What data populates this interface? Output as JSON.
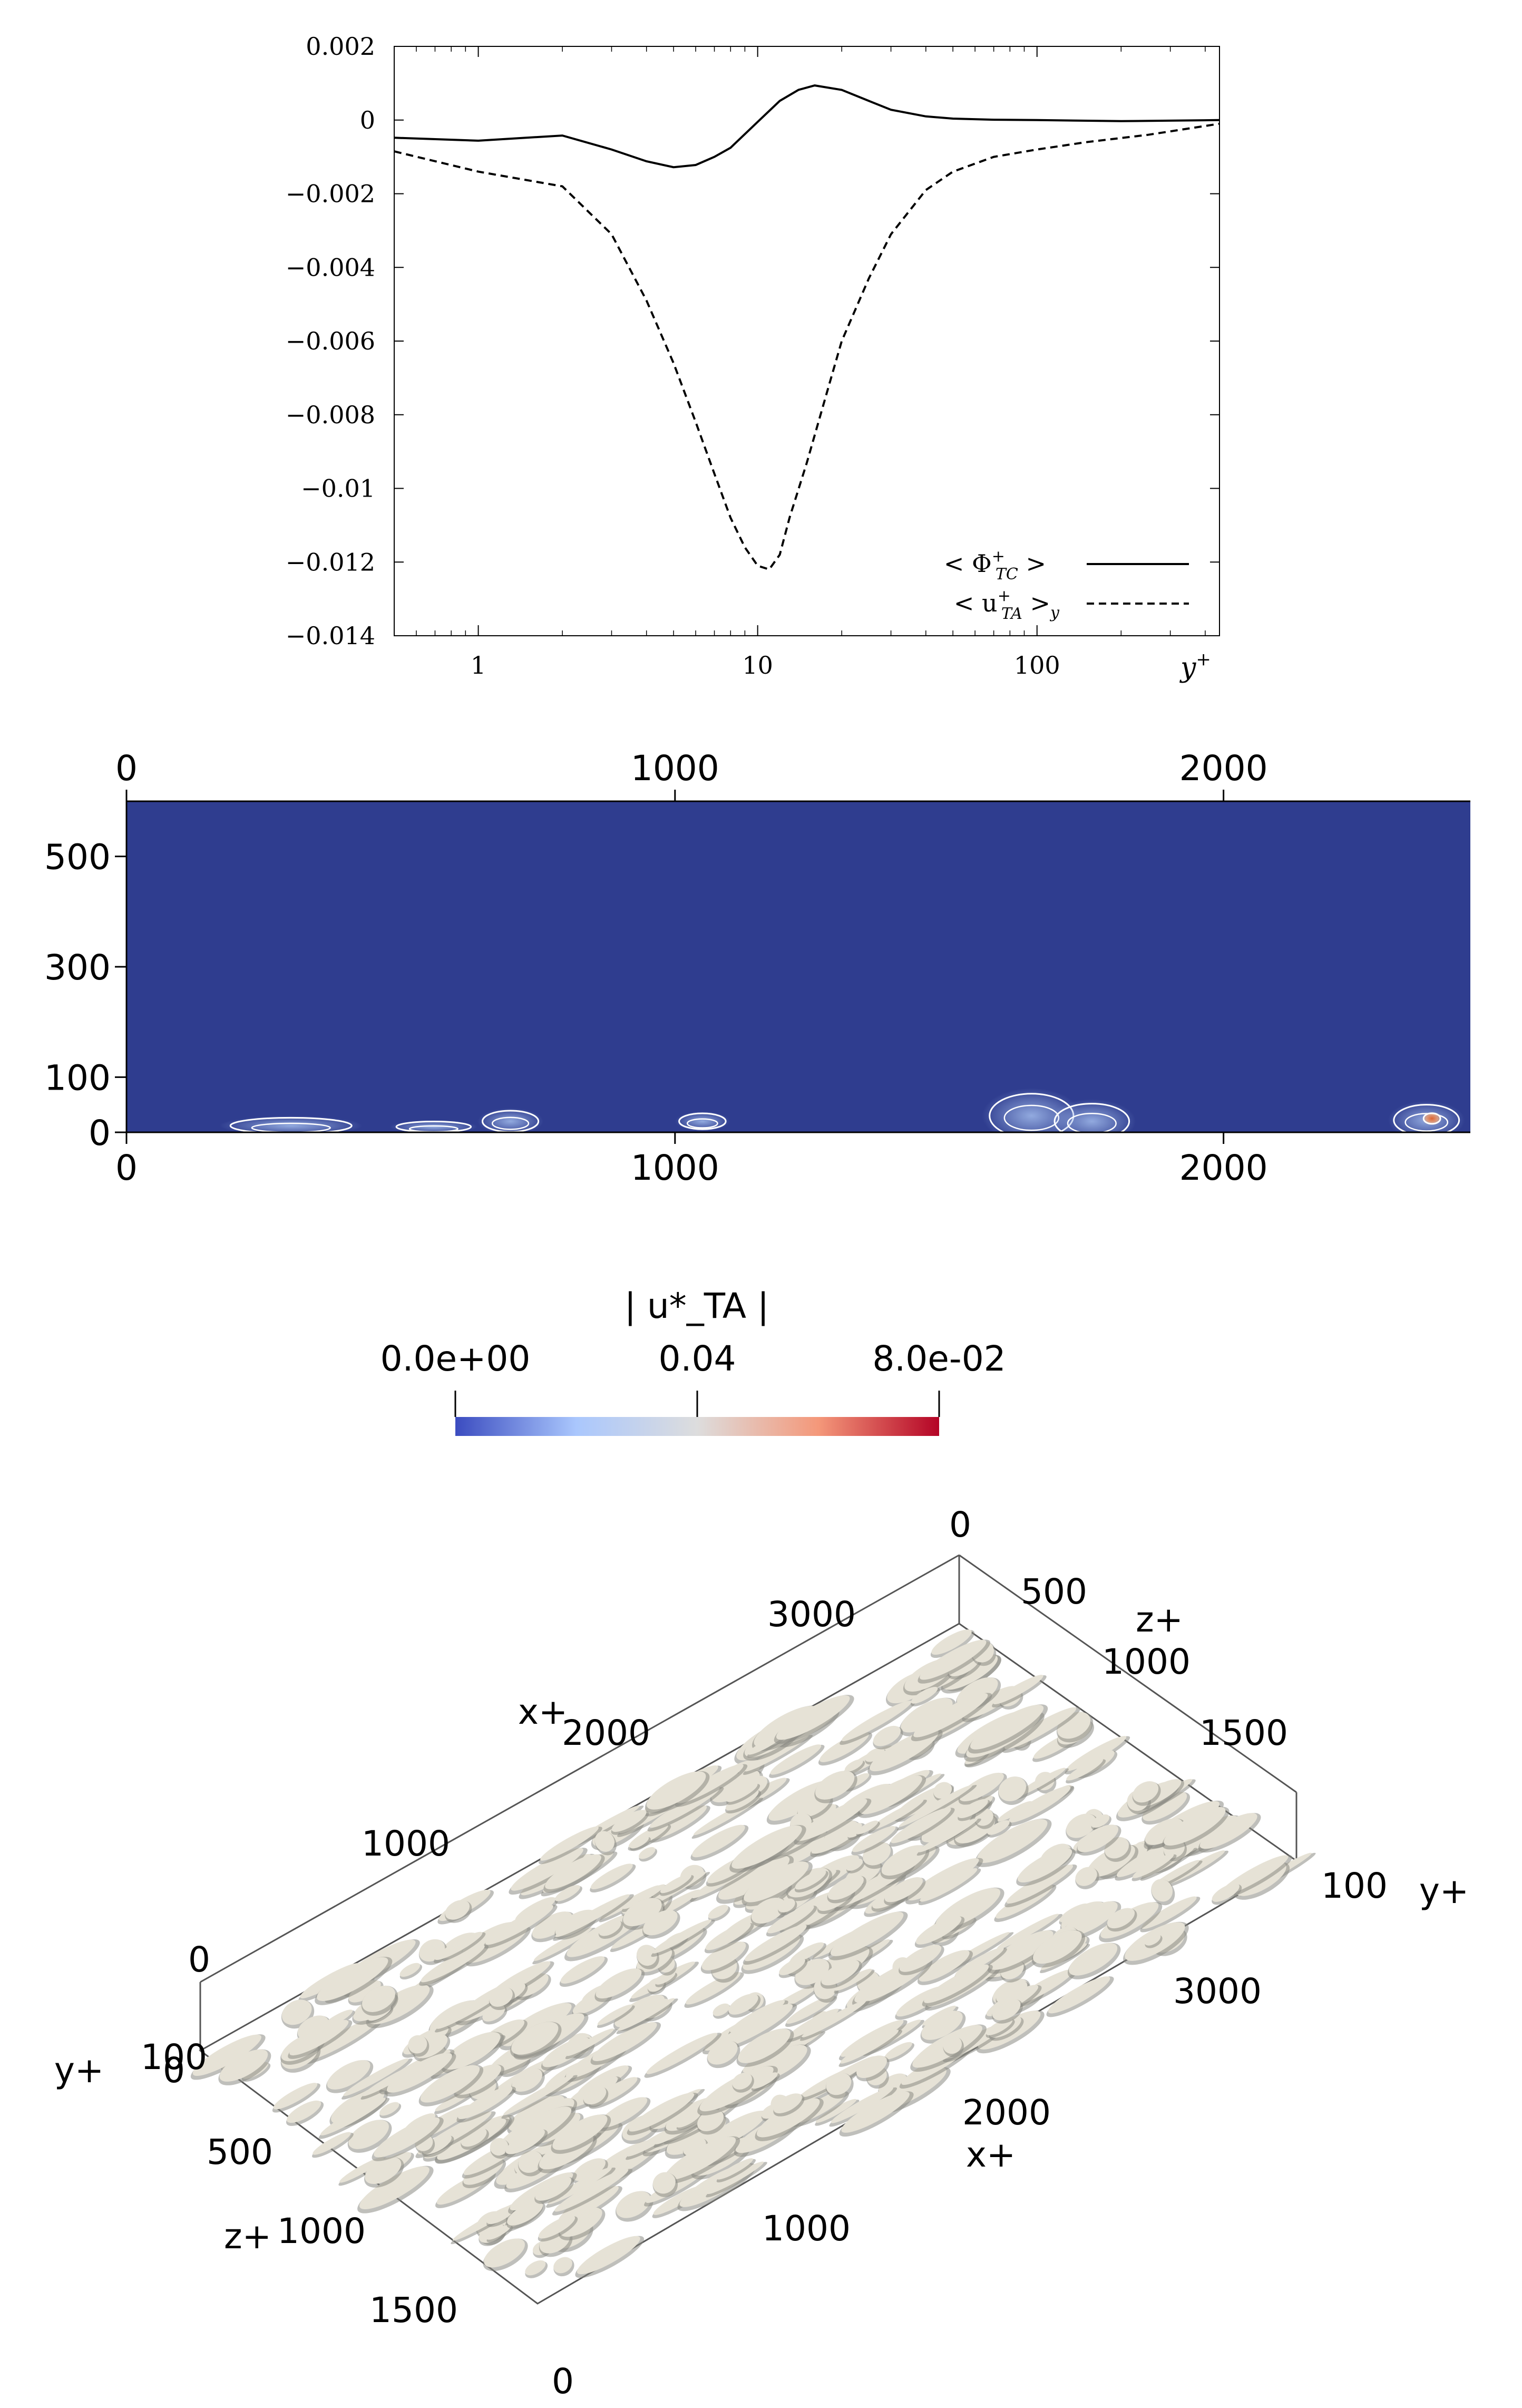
{
  "chart_data": [
    {
      "type": "line",
      "xscale": "log",
      "xlim": [
        0.5,
        450
      ],
      "ylim": [
        -0.014,
        0.002
      ],
      "xticks": [
        1,
        10,
        100
      ],
      "xtick_labels": [
        "1",
        "10",
        "100"
      ],
      "yticks": [
        0.002,
        0,
        -0.002,
        -0.004,
        -0.006,
        -0.008,
        -0.01,
        -0.012,
        -0.014
      ],
      "ytick_labels": [
        "0.002",
        "0",
        "−0.002",
        "−0.004",
        "−0.006",
        "−0.008",
        "−0.01",
        "−0.012",
        "−0.014"
      ],
      "xlabel_main": "y",
      "xlabel_sup": "+",
      "legend_placement": "bottom-right",
      "series": [
        {
          "name": "< Φ+TC >",
          "legend": {
            "pre": "< Φ",
            "sup": "+",
            "sub": "TC",
            "post": " >"
          },
          "style": "solid",
          "x": [
            0.5,
            1,
            2,
            3,
            4,
            5,
            6,
            7,
            8,
            10,
            12,
            14,
            16,
            20,
            25,
            30,
            40,
            50,
            70,
            100,
            200,
            450
          ],
          "y": [
            -0.00048,
            -0.00056,
            -0.00042,
            -0.0008,
            -0.00112,
            -0.00128,
            -0.00122,
            -0.001,
            -0.00075,
            -5e-05,
            0.00052,
            0.00082,
            0.00094,
            0.00082,
            0.00052,
            0.00028,
            0.0001,
            4e-05,
            1e-05,
            0.0,
            -3e-05,
            0.0
          ]
        },
        {
          "name": "< u+TA >y",
          "legend": {
            "pre": "< u",
            "sup": "+",
            "sub": "TA",
            "post": " >",
            "post_sub": "y"
          },
          "style": "dashed",
          "x": [
            0.5,
            1,
            2,
            3,
            4,
            5,
            6,
            7,
            8,
            9,
            10,
            11,
            12,
            13,
            15,
            18,
            20,
            25,
            30,
            40,
            50,
            70,
            100,
            150,
            250,
            450
          ],
          "y": [
            -0.00085,
            -0.0014,
            -0.0018,
            -0.0031,
            -0.0049,
            -0.0066,
            -0.0082,
            -0.0096,
            -0.0108,
            -0.0116,
            -0.0121,
            -0.0122,
            -0.0118,
            -0.0108,
            -0.0093,
            -0.0072,
            -0.006,
            -0.0043,
            -0.0031,
            -0.0019,
            -0.0014,
            -0.001,
            -0.0008,
            -0.0006,
            -0.0004,
            -0.0001
          ]
        }
      ]
    },
    {
      "type": "heatmap",
      "colormap": "coolwarm",
      "xlim": [
        0,
        2450
      ],
      "ylim": [
        0,
        600
      ],
      "xticks_top": [
        0,
        1000,
        2000
      ],
      "xticks_bottom": [
        0,
        1000,
        2000
      ],
      "yticks": [
        0,
        100,
        300,
        500
      ],
      "xtick_labels": [
        "0",
        "1000",
        "2000"
      ],
      "ytick_labels": [
        "0",
        "100",
        "300",
        "500"
      ],
      "background_color": "#2f3d8f",
      "hotspot_color": "#e0622e",
      "contour_color": "#ffffff",
      "colorbar": {
        "title": "| u*_TA |",
        "tick_labels": [
          "0.0e+00",
          "0.04",
          "8.0e-02"
        ],
        "ticks": [
          0.0,
          0.04,
          0.08
        ],
        "range": [
          0.0,
          0.08
        ],
        "colors": [
          "#3b4cc0",
          "#aac7fd",
          "#dddddd",
          "#f4987a",
          "#b40426"
        ]
      },
      "regions": [
        {
          "x": 300,
          "y": 12,
          "rx": 130,
          "ry": 18,
          "v": 0.012
        },
        {
          "x": 560,
          "y": 10,
          "rx": 80,
          "ry": 12,
          "v": 0.008
        },
        {
          "x": 700,
          "y": 20,
          "rx": 60,
          "ry": 24,
          "v": 0.01
        },
        {
          "x": 1050,
          "y": 20,
          "rx": 50,
          "ry": 18,
          "v": 0.008
        },
        {
          "x": 1650,
          "y": 30,
          "rx": 90,
          "ry": 50,
          "v": 0.022
        },
        {
          "x": 1760,
          "y": 20,
          "rx": 80,
          "ry": 40,
          "v": 0.018
        },
        {
          "x": 2370,
          "y": 22,
          "rx": 70,
          "ry": 35,
          "v": 0.03
        },
        {
          "x": 2380,
          "y": 25,
          "rx": 18,
          "ry": 12,
          "v": 0.06
        }
      ]
    },
    {
      "type": "other",
      "description_kind": "3d-isosurface",
      "axis_x_label": "x+",
      "axis_y_label": "y+",
      "axis_z_label": "z+",
      "x_ticks": [
        "1000",
        "2000",
        "3000"
      ],
      "x_ticks_near": [
        "1000",
        "2000",
        "3000"
      ],
      "z_ticks": [
        "0",
        "500",
        "1000",
        "1500"
      ],
      "z_ticks_far": [
        "0",
        "500",
        "1000",
        "1500"
      ],
      "y_ticks": [
        "0",
        "100"
      ],
      "y_ticks_right": [
        "100"
      ],
      "top_corner_label": "0",
      "surface_color": "#e6e2d6",
      "surface_shadow": "#8a8a84"
    }
  ]
}
